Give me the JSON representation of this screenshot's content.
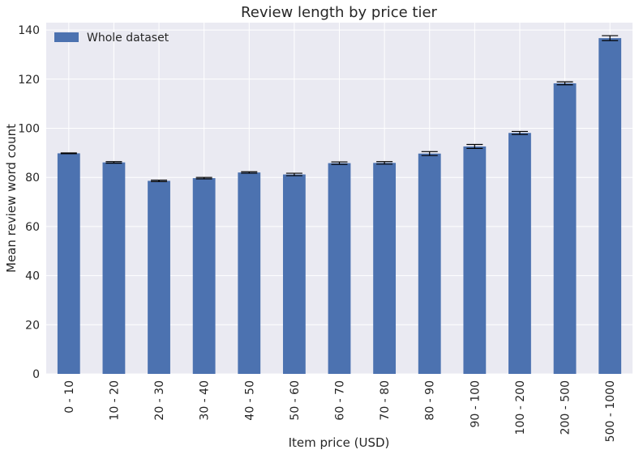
{
  "chart_data": {
    "type": "bar",
    "title": "Review length by price tier",
    "xlabel": "Item price (USD)",
    "ylabel": "Mean review word count",
    "categories": [
      "0 - 10",
      "10 - 20",
      "20 - 30",
      "30 - 40",
      "40 - 50",
      "50 - 60",
      "60 - 70",
      "70 - 80",
      "80 - 90",
      "90 - 100",
      "100 - 200",
      "200 - 500",
      "500 - 1000"
    ],
    "series": [
      {
        "name": "Whole dataset",
        "values": [
          89.8,
          86.1,
          78.6,
          79.7,
          82.0,
          81.2,
          85.8,
          85.9,
          89.7,
          92.6,
          98.1,
          118.3,
          136.7
        ],
        "errors": [
          0.15,
          0.3,
          0.3,
          0.3,
          0.3,
          0.5,
          0.5,
          0.5,
          0.8,
          0.8,
          0.6,
          0.6,
          1.0
        ]
      }
    ],
    "ylim": [
      0,
      143
    ],
    "yticks": [
      0,
      20,
      40,
      60,
      80,
      100,
      120,
      140
    ],
    "grid": true,
    "legend_position": "top-left",
    "colors": {
      "bar": "#4c72b0",
      "background": "#eaeaf2",
      "grid": "#ffffff",
      "error_bar": "#000000",
      "text": "#262626"
    }
  }
}
